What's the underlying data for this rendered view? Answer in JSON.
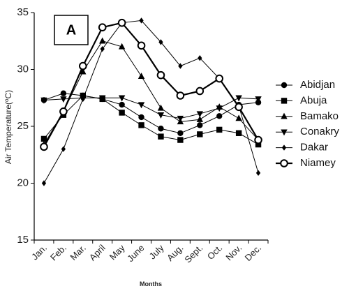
{
  "chart_data": {
    "type": "line",
    "panel_label": "A",
    "xlabel": "Months",
    "ylabel": "Air Temperature(°C)",
    "ylabel_main": "Air Temperature(",
    "ylabel_sup": "o",
    "ylabel_tail": "C)",
    "ylim": [
      15,
      35
    ],
    "yticks": [
      15,
      20,
      25,
      30,
      35
    ],
    "categories": [
      "Jan.",
      "Feb.",
      "Mar.",
      "April",
      "May",
      "June",
      "July",
      "Aug.",
      "Sept.",
      "Oct.",
      "Nov.",
      "Dec."
    ],
    "legend_position": "right",
    "grid": false,
    "series": [
      {
        "name": "Abidjan",
        "marker": "circle",
        "line_width": 1,
        "values": [
          27.3,
          27.9,
          27.7,
          27.4,
          26.9,
          25.8,
          24.8,
          24.4,
          25.1,
          25.9,
          26.9,
          27.1
        ]
      },
      {
        "name": "Abuja",
        "marker": "square",
        "line_width": 1,
        "values": [
          23.9,
          26.0,
          27.7,
          27.4,
          26.2,
          25.1,
          24.1,
          23.8,
          24.3,
          24.7,
          24.4,
          23.4
        ]
      },
      {
        "name": "Bamako",
        "marker": "triangle-up",
        "line_width": 1,
        "values": [
          23.4,
          26.3,
          29.8,
          32.5,
          32.0,
          29.4,
          26.6,
          25.4,
          25.6,
          26.7,
          25.7,
          23.8
        ]
      },
      {
        "name": "Conakry",
        "marker": "triangle-down",
        "line_width": 1,
        "values": [
          27.3,
          27.4,
          27.5,
          27.5,
          27.5,
          26.9,
          26.0,
          25.7,
          26.1,
          26.6,
          27.5,
          27.4
        ]
      },
      {
        "name": "Dakar",
        "marker": "diamond",
        "line_width": 1,
        "values": [
          20.0,
          23.0,
          27.4,
          31.8,
          34.1,
          34.3,
          32.4,
          30.3,
          31.0,
          29.2,
          26.8,
          20.9
        ]
      },
      {
        "name": "Niamey",
        "marker": "open-circle",
        "line_width": 2.2,
        "values": [
          23.2,
          26.3,
          30.3,
          33.7,
          34.1,
          32.1,
          29.5,
          27.7,
          28.1,
          29.2,
          26.7,
          23.8
        ]
      }
    ]
  }
}
